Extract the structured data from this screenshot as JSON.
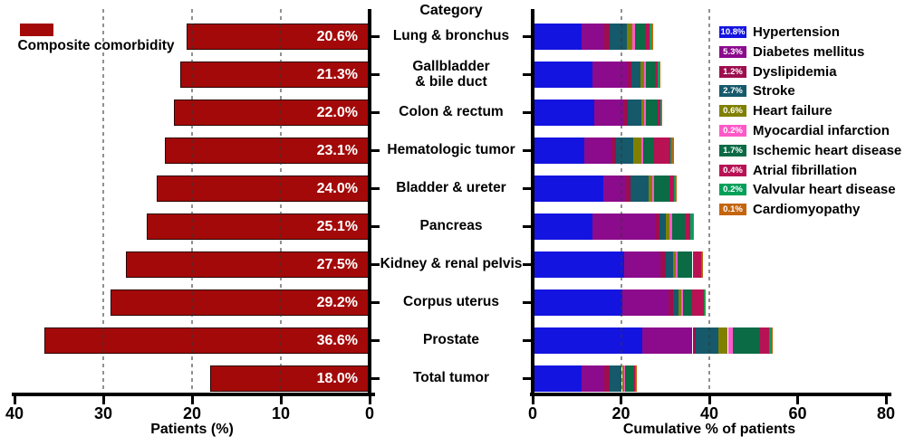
{
  "figure": {
    "category_header": "Category",
    "left_legend": {
      "label": "Composite comorbidity",
      "color": "#a30909"
    }
  },
  "chart_data": [
    {
      "type": "bar",
      "orientation": "horizontal",
      "series_name": "Composite comorbidity",
      "bar_color": "#a30909",
      "xlabel": "Patients (%)",
      "axis_reversed": true,
      "xlim": [
        40,
        0
      ],
      "xticks": [
        40,
        30,
        20,
        10,
        0
      ],
      "gridlines": [
        30,
        20,
        10
      ],
      "grid": true,
      "categories": [
        "Lung & bronchus",
        "Gallbladder\n& bile duct",
        "Colon & rectum",
        "Hematologic tumor",
        "Bladder & ureter",
        "Pancreas",
        "Kidney & renal pelvis",
        "Corpus  uterus",
        "Prostate",
        "Total tumor"
      ],
      "values": [
        20.6,
        21.3,
        22.0,
        23.1,
        24.0,
        25.1,
        27.5,
        29.2,
        36.6,
        18.0
      ],
      "bar_labels": [
        "20.6%",
        "21.3%",
        "22.0%",
        "23.1%",
        "24.0%",
        "25.1%",
        "27.5%",
        "29.2%",
        "36.6%",
        "18.0%"
      ]
    },
    {
      "type": "stacked-bar",
      "orientation": "horizontal",
      "xlabel": "Cumulative % of patients",
      "xlim": [
        0,
        80
      ],
      "xticks": [
        0,
        20,
        40,
        60,
        80
      ],
      "gridlines": [
        20,
        40
      ],
      "grid": true,
      "legend_position": "right",
      "categories": [
        "Lung & bronchus",
        "Gallbladder\n& bile duct",
        "Colon & rectum",
        "Hematologic tumor",
        "Bladder & ureter",
        "Pancreas",
        "Kidney & renal pelvis",
        "Corpus  uterus",
        "Prostate",
        "Total tumor"
      ],
      "series": [
        {
          "name": "Hypertension",
          "legend_pct": "10.8%",
          "color": "#1414e0",
          "values": [
            10.8,
            13.3,
            13.8,
            11.5,
            15.7,
            13.3,
            20.5,
            20.1,
            24.6,
            10.8
          ]
        },
        {
          "name": "Diabetes mellitus",
          "legend_pct": "5.3%",
          "color": "#8c0a8c",
          "values": [
            5.3,
            8.0,
            6.5,
            6.1,
            5.3,
            14.4,
            8.2,
            10.4,
            11.4,
            5.3
          ]
        },
        {
          "name": "Dyslipidemia",
          "legend_pct": "1.2%",
          "color": "#9d0e4e",
          "values": [
            1.1,
            0.8,
            1.0,
            1.0,
            1.0,
            0.8,
            1.2,
            1.0,
            0.8,
            1.2
          ]
        },
        {
          "name": "Stroke",
          "legend_pct": "2.7%",
          "color": "#15596b",
          "values": [
            4.0,
            2.2,
            3.2,
            3.9,
            4.0,
            1.5,
            1.7,
            1.4,
            5.0,
            2.7
          ]
        },
        {
          "name": "Heart failure",
          "legend_pct": "0.6%",
          "color": "#808000",
          "values": [
            1.2,
            0.7,
            0.6,
            1.9,
            0.8,
            0.8,
            0.7,
            0.6,
            2.2,
            0.6
          ]
        },
        {
          "name": "Myocardial infarction",
          "legend_pct": "0.2%",
          "color": "#ff59c8",
          "values": [
            0.5,
            0.4,
            0.3,
            0.4,
            0.5,
            0.5,
            0.4,
            0.4,
            1.1,
            0.2
          ]
        },
        {
          "name": "Ischemic heart disease",
          "legend_pct": "1.7%",
          "color": "#0a6b45",
          "values": [
            2.4,
            2.0,
            2.7,
            2.4,
            3.4,
            2.9,
            3.3,
            2.0,
            6.1,
            1.7
          ]
        },
        {
          "name": "Atrial fibrillation",
          "legend_pct": "0.4%",
          "color": "#b81254",
          "values": [
            1.0,
            0.8,
            0.7,
            3.8,
            1.1,
            1.3,
            1.9,
            2.6,
            2.2,
            0.4
          ]
        },
        {
          "name": "Valvular heart disease",
          "legend_pct": "0.2%",
          "color": "#00a05a",
          "values": [
            0.4,
            0.3,
            0.2,
            0.4,
            0.3,
            0.5,
            0.3,
            0.3,
            0.5,
            0.2
          ]
        },
        {
          "name": "Cardiomyopathy",
          "legend_pct": "0.1%",
          "color": "#c4650e",
          "values": [
            0.3,
            0.2,
            0.2,
            0.4,
            0.3,
            0.4,
            0.2,
            0.1,
            0.3,
            0.1
          ]
        }
      ]
    }
  ]
}
